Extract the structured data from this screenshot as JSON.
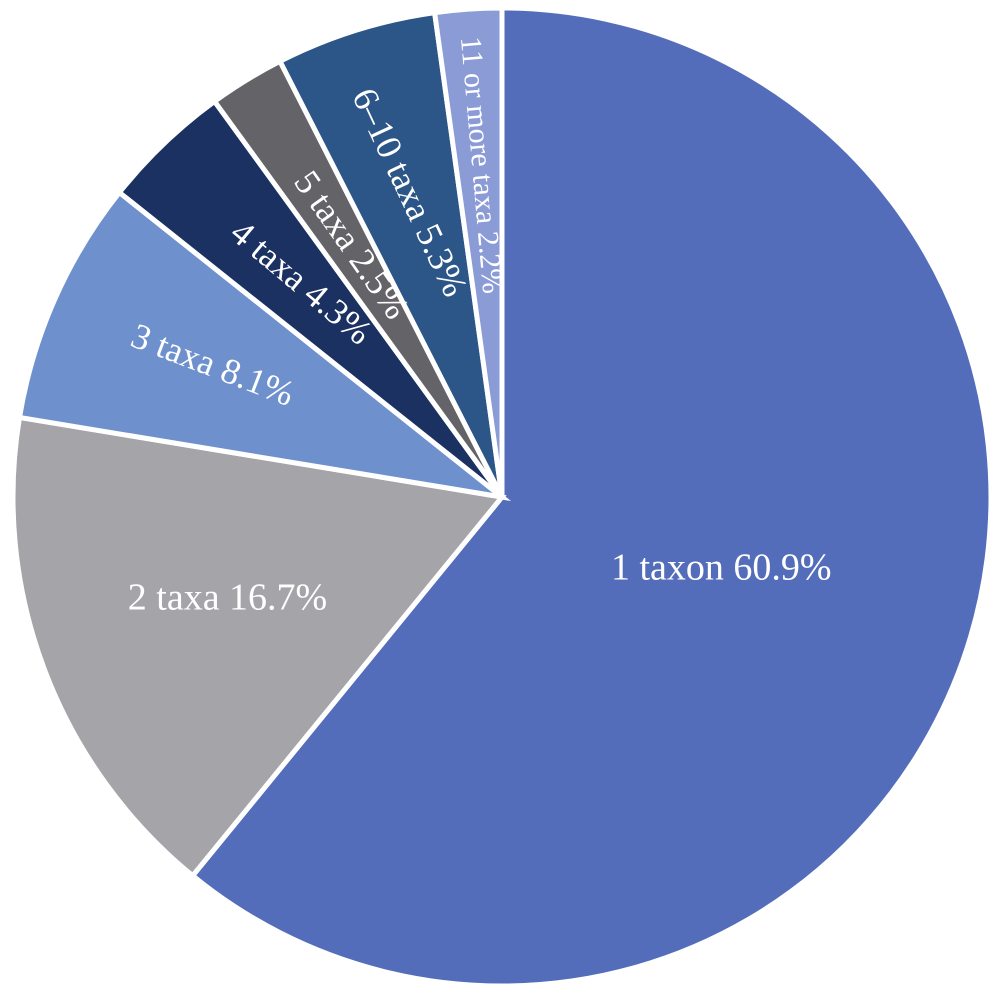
{
  "chart_data": {
    "type": "pie",
    "start_angle_deg": 0,
    "direction": "clockwise",
    "legend": "none",
    "slices": [
      {
        "name": "1 taxon",
        "value": 60.9,
        "label": "1 taxon 60.9%",
        "color": "#546dba"
      },
      {
        "name": "2 taxa",
        "value": 16.7,
        "label": "2 taxa 16.7%",
        "color": "#a5a4a8"
      },
      {
        "name": "3 taxa",
        "value": 8.1,
        "label": "3 taxa 8.1%",
        "color": "#6e91cd"
      },
      {
        "name": "4 taxa",
        "value": 4.3,
        "label": "4 taxa 4.3%",
        "color": "#1b3162"
      },
      {
        "name": "5 taxa",
        "value": 2.5,
        "label": "5 taxa 2.5%",
        "color": "#646468"
      },
      {
        "name": "6–10 taxa",
        "value": 5.3,
        "label": "6–10 taxa 5.3%",
        "color": "#2c5687"
      },
      {
        "name": "11 or more taxa",
        "value": 2.2,
        "label": "11 or more taxa 2.2%",
        "color": "#8b9bd5"
      }
    ]
  }
}
